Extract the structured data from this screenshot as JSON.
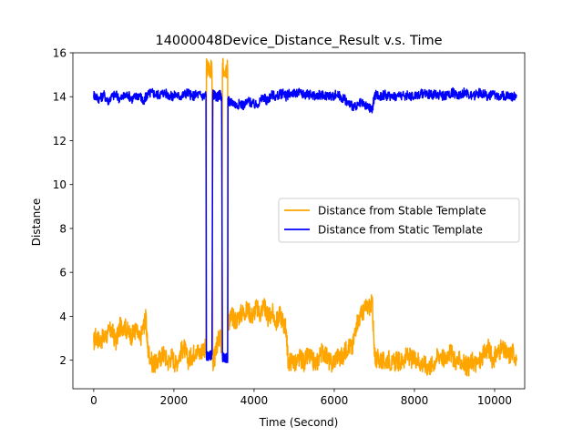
{
  "chart_data": {
    "type": "line",
    "title": "14000048Device_Distance_Result v.s. Time",
    "xlabel": "Time (Second)",
    "ylabel": "Distance",
    "xlim": [
      -520,
      10750
    ],
    "ylim": [
      0.7,
      16
    ],
    "xticks": [
      0,
      2000,
      4000,
      6000,
      8000,
      10000
    ],
    "xtick_labels": [
      "0",
      "2000",
      "4000",
      "6000",
      "8000",
      "10000"
    ],
    "yticks": [
      2,
      4,
      6,
      8,
      10,
      12,
      14,
      16
    ],
    "ytick_labels": [
      "2",
      "4",
      "6",
      "8",
      "10",
      "12",
      "14",
      "16"
    ],
    "grid": false,
    "legend_position": "center-right",
    "series": [
      {
        "name": "Distance from Stable Template",
        "color": "#FFA500",
        "x": [
          0,
          50,
          150,
          250,
          350,
          450,
          550,
          650,
          750,
          850,
          950,
          1050,
          1150,
          1250,
          1300,
          1350,
          1450,
          1550,
          1650,
          1750,
          1850,
          1950,
          2050,
          2150,
          2250,
          2350,
          2450,
          2550,
          2650,
          2750,
          2800,
          2810,
          2830,
          2900,
          2950,
          2970,
          2990,
          3030,
          3100,
          3150,
          3190,
          3210,
          3230,
          3300,
          3340,
          3350,
          3400,
          3450,
          3550,
          3650,
          3750,
          3850,
          3950,
          4050,
          4150,
          4250,
          4300,
          4350,
          4450,
          4550,
          4650,
          4750,
          4800,
          4850,
          4950,
          5050,
          5150,
          5250,
          5350,
          5450,
          5550,
          5650,
          5750,
          5850,
          5950,
          6050,
          6150,
          6250,
          6350,
          6450,
          6550,
          6650,
          6750,
          6850,
          6950,
          7000,
          7050,
          7150,
          7250,
          7350,
          7450,
          7550,
          7650,
          7750,
          7850,
          7950,
          8050,
          8150,
          8250,
          8350,
          8450,
          8550,
          8650,
          8750,
          8850,
          8950,
          9050,
          9150,
          9250,
          9350,
          9450,
          9550,
          9650,
          9750,
          9850,
          9950,
          10050,
          10150,
          10250,
          10350,
          10450,
          10550
        ],
        "y": [
          2.8,
          3.1,
          2.9,
          3.0,
          3.2,
          3.4,
          2.8,
          3.5,
          3.6,
          3.3,
          3.1,
          3.4,
          2.9,
          3.6,
          3.9,
          2.5,
          1.9,
          1.8,
          2.1,
          2.3,
          1.9,
          2.2,
          1.8,
          2.3,
          2.6,
          2.0,
          2.2,
          2.5,
          2.3,
          2.6,
          2.5,
          15.3,
          15.3,
          15.3,
          15.2,
          1.9,
          2.0,
          2.2,
          2.9,
          3.1,
          2.4,
          15.3,
          15.3,
          15.3,
          15.3,
          3.7,
          3.9,
          4.0,
          3.8,
          4.1,
          4.2,
          4.3,
          4.0,
          4.4,
          4.1,
          4.6,
          4.2,
          3.9,
          4.2,
          3.7,
          4.1,
          3.6,
          3.4,
          1.9,
          2.0,
          1.8,
          2.1,
          1.9,
          2.2,
          2.0,
          1.8,
          2.3,
          2.4,
          2.0,
          1.8,
          2.2,
          2.1,
          2.3,
          2.7,
          2.5,
          3.7,
          4.0,
          4.3,
          4.4,
          4.6,
          2.2,
          2.1,
          2.0,
          1.9,
          2.1,
          1.8,
          2.0,
          1.9,
          2.1,
          2.2,
          2.0,
          2.1,
          1.9,
          1.8,
          1.7,
          1.8,
          2.1,
          2.3,
          2.0,
          2.4,
          2.2,
          1.9,
          2.0,
          1.8,
          1.7,
          2.0,
          1.8,
          2.0,
          2.3,
          2.6,
          2.0,
          2.3,
          2.5,
          2.4,
          2.2,
          2.4,
          2.1
        ]
      },
      {
        "name": "Distance from Static Template",
        "color": "#0000FF",
        "x": [
          0,
          50,
          150,
          250,
          350,
          450,
          550,
          650,
          750,
          850,
          950,
          1050,
          1150,
          1250,
          1300,
          1350,
          1450,
          1550,
          1650,
          1750,
          1850,
          1950,
          2050,
          2150,
          2250,
          2350,
          2450,
          2550,
          2650,
          2750,
          2800,
          2810,
          2830,
          2900,
          2950,
          2970,
          2990,
          3030,
          3100,
          3150,
          3190,
          3210,
          3230,
          3300,
          3340,
          3350,
          3400,
          3450,
          3550,
          3650,
          3750,
          3850,
          3950,
          4050,
          4150,
          4250,
          4300,
          4350,
          4450,
          4550,
          4650,
          4750,
          4800,
          4850,
          4950,
          5050,
          5150,
          5250,
          5350,
          5450,
          5550,
          5650,
          5750,
          5850,
          5950,
          6050,
          6150,
          6250,
          6350,
          6450,
          6550,
          6650,
          6750,
          6850,
          6950,
          7000,
          7050,
          7150,
          7250,
          7350,
          7450,
          7550,
          7650,
          7750,
          7850,
          7950,
          8050,
          8150,
          8250,
          8350,
          8450,
          8550,
          8650,
          8750,
          8850,
          8950,
          9050,
          9150,
          9250,
          9350,
          9450,
          9550,
          9650,
          9750,
          9850,
          9950,
          10050,
          10150,
          10250,
          10350,
          10450,
          10550
        ],
        "y": [
          14.1,
          14.0,
          13.9,
          14.1,
          13.8,
          14.0,
          14.1,
          13.9,
          14.0,
          14.1,
          13.9,
          14.0,
          14.1,
          13.7,
          14.0,
          14.1,
          14.2,
          14.1,
          14.1,
          14.2,
          14.1,
          14.0,
          14.1,
          14.0,
          14.1,
          14.2,
          14.0,
          14.1,
          14.1,
          14.0,
          14.1,
          2.2,
          2.2,
          2.2,
          2.3,
          14.1,
          14.1,
          14.0,
          14.0,
          14.1,
          14.0,
          2.2,
          2.1,
          2.1,
          2.1,
          13.9,
          13.7,
          13.8,
          13.6,
          13.7,
          13.6,
          13.8,
          13.7,
          13.6,
          13.8,
          14.0,
          13.8,
          13.9,
          14.1,
          14.0,
          14.1,
          14.2,
          14.0,
          14.1,
          14.2,
          14.1,
          14.2,
          14.1,
          14.1,
          14.1,
          14.0,
          14.1,
          14.0,
          14.1,
          14.0,
          14.1,
          14.0,
          13.9,
          13.7,
          13.6,
          13.5,
          13.7,
          13.6,
          13.5,
          13.4,
          14.0,
          14.1,
          14.0,
          14.1,
          14.0,
          14.1,
          14.0,
          14.1,
          14.0,
          14.1,
          14.0,
          14.1,
          14.1,
          14.2,
          14.1,
          14.1,
          14.1,
          14.1,
          14.0,
          14.1,
          14.2,
          14.1,
          14.1,
          14.2,
          14.1,
          14.0,
          14.1,
          14.2,
          14.1,
          14.0,
          14.1,
          14.0,
          14.1,
          14.0,
          14.1,
          14.0,
          14.1
        ]
      }
    ]
  }
}
